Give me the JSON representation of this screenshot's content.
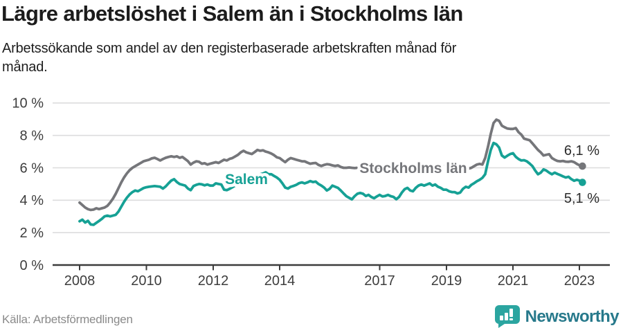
{
  "header": {
    "title": "Lägre arbetslöshet i Salem än i Stockholms län",
    "subtitle": "Arbetssökande som andel av den registerbaserade arbetskraften månad för månad."
  },
  "footer": {
    "source": "Källa: Arbetsförmedlingen",
    "brand": "Newsworthy"
  },
  "colors": {
    "stockholm_line": "#75767a",
    "salem_line": "#16a195",
    "brand_teal": "#2ba5a0",
    "brand_text": "#27798b"
  },
  "chart_data": {
    "type": "line",
    "title": "Lägre arbetslöshet i Salem än i Stockholms län",
    "unit": "%",
    "x_start": "2008-01",
    "x_end": "2023-02",
    "frequency": "monthly",
    "ylim": [
      0,
      10
    ],
    "grid": true,
    "x_ticks": [
      "2008",
      "2010",
      "2012",
      "2014",
      "2017",
      "2019",
      "2021",
      "2023"
    ],
    "y_ticks": [
      {
        "value": 0,
        "label": "0 %"
      },
      {
        "value": 2,
        "label": "2 %"
      },
      {
        "value": 4,
        "label": "4 %"
      },
      {
        "value": 6,
        "label": "6 %"
      },
      {
        "value": 8,
        "label": "8 %"
      },
      {
        "value": 10,
        "label": "10 %"
      }
    ],
    "series": [
      {
        "name": "Stockholms län",
        "color": "#75767a",
        "end_label": "6,1 %",
        "last_value": 6.1,
        "values": [
          3.85,
          3.7,
          3.55,
          3.45,
          3.4,
          3.42,
          3.5,
          3.45,
          3.5,
          3.55,
          3.65,
          3.85,
          4.1,
          4.4,
          4.75,
          5.1,
          5.4,
          5.65,
          5.85,
          6.0,
          6.1,
          6.2,
          6.3,
          6.4,
          6.45,
          6.5,
          6.58,
          6.62,
          6.54,
          6.45,
          6.54,
          6.62,
          6.67,
          6.71,
          6.67,
          6.71,
          6.62,
          6.67,
          6.54,
          6.41,
          6.2,
          6.32,
          6.4,
          6.37,
          6.25,
          6.28,
          6.2,
          6.25,
          6.3,
          6.35,
          6.3,
          6.4,
          6.5,
          6.45,
          6.55,
          6.6,
          6.7,
          6.8,
          6.95,
          7.05,
          6.95,
          6.9,
          6.85,
          6.97,
          7.1,
          7.05,
          7.08,
          7.0,
          6.95,
          6.88,
          6.78,
          6.65,
          6.6,
          6.47,
          6.35,
          6.5,
          6.6,
          6.55,
          6.5,
          6.45,
          6.4,
          6.4,
          6.32,
          6.25,
          6.28,
          6.3,
          6.18,
          6.11,
          6.18,
          6.22,
          6.2,
          6.15,
          6.11,
          6.15,
          6.05,
          6.0,
          6.0,
          6.02,
          6.0,
          5.98,
          6.0,
          6.0,
          5.98,
          5.96,
          5.98,
          6.0,
          6.02,
          6.0,
          6.02,
          6.05,
          6.03,
          6.0,
          5.98,
          6.0,
          6.03,
          6.05,
          6.02,
          6.0,
          6.03,
          6.05,
          6.08,
          6.05,
          6.02,
          6.0,
          5.98,
          6.0,
          6.02,
          6.05,
          6.08,
          6.1,
          6.08,
          6.1,
          6.1,
          6.08,
          6.05,
          6.0,
          5.98,
          5.95,
          5.92,
          5.9,
          5.95,
          6.0,
          6.1,
          6.2,
          6.24,
          6.2,
          6.6,
          7.3,
          8.1,
          8.76,
          8.97,
          8.9,
          8.6,
          8.5,
          8.42,
          8.4,
          8.4,
          8.45,
          8.2,
          8.05,
          7.8,
          7.75,
          7.7,
          7.5,
          7.3,
          7.1,
          6.95,
          6.76,
          6.8,
          6.84,
          6.6,
          6.5,
          6.42,
          6.4,
          6.42,
          6.38,
          6.37,
          6.4,
          6.35,
          6.24,
          6.15,
          6.1
        ]
      },
      {
        "name": "Salem",
        "color": "#16a195",
        "end_label": "5,1 %",
        "last_value": 5.1,
        "values": [
          2.7,
          2.8,
          2.62,
          2.73,
          2.5,
          2.48,
          2.6,
          2.72,
          2.85,
          3.0,
          3.05,
          3.0,
          3.05,
          3.1,
          3.3,
          3.6,
          3.9,
          4.15,
          4.35,
          4.5,
          4.6,
          4.55,
          4.65,
          4.75,
          4.8,
          4.83,
          4.85,
          4.87,
          4.85,
          4.83,
          4.72,
          4.85,
          5.04,
          5.21,
          5.3,
          5.12,
          5.0,
          4.95,
          4.9,
          4.72,
          4.62,
          4.87,
          4.95,
          5.0,
          4.98,
          4.92,
          4.97,
          4.9,
          4.9,
          5.04,
          5.0,
          4.97,
          4.65,
          4.62,
          4.7,
          4.8,
          4.9,
          5.0,
          5.05,
          5.1,
          5.2,
          5.3,
          5.35,
          5.45,
          5.5,
          5.6,
          5.65,
          5.72,
          5.6,
          5.6,
          5.5,
          5.4,
          5.26,
          5.04,
          4.78,
          4.72,
          4.83,
          4.88,
          4.95,
          5.05,
          5.1,
          5.04,
          5.1,
          5.18,
          5.12,
          5.15,
          5.0,
          4.9,
          4.78,
          4.6,
          4.7,
          4.9,
          4.83,
          4.76,
          4.6,
          4.42,
          4.25,
          4.15,
          4.05,
          4.25,
          4.4,
          4.45,
          4.4,
          4.26,
          4.33,
          4.2,
          4.12,
          4.23,
          4.33,
          4.23,
          4.26,
          4.33,
          4.25,
          4.2,
          4.06,
          4.2,
          4.47,
          4.68,
          4.76,
          4.6,
          4.55,
          4.76,
          4.9,
          4.97,
          4.9,
          4.97,
          5.04,
          4.9,
          4.97,
          4.83,
          4.76,
          4.65,
          4.65,
          4.55,
          4.5,
          4.5,
          4.42,
          4.47,
          4.7,
          4.83,
          4.78,
          4.95,
          5.05,
          5.17,
          5.26,
          5.38,
          5.6,
          6.4,
          7.1,
          7.53,
          7.45,
          7.25,
          6.76,
          6.63,
          6.75,
          6.85,
          6.9,
          6.68,
          6.54,
          6.45,
          6.47,
          6.4,
          6.26,
          6.1,
          5.83,
          5.6,
          5.7,
          5.9,
          5.83,
          5.7,
          5.6,
          5.7,
          5.62,
          5.55,
          5.47,
          5.4,
          5.45,
          5.3,
          5.2,
          5.26,
          5.2,
          5.1
        ]
      }
    ]
  }
}
